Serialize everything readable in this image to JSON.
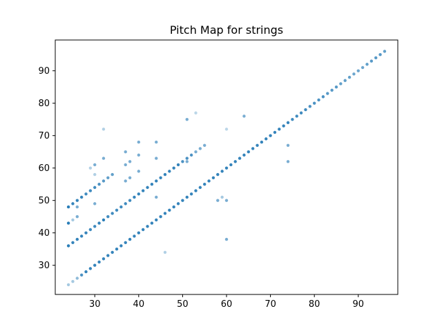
{
  "chart_data": {
    "type": "scatter",
    "title": "Pitch Map for strings",
    "xlabel": "",
    "ylabel": "",
    "xlim": [
      21,
      99
    ],
    "ylim": [
      21,
      99.5
    ],
    "xticks": [
      30,
      40,
      50,
      60,
      70,
      80,
      90
    ],
    "yticks": [
      30,
      40,
      50,
      60,
      70,
      80,
      90
    ],
    "grid": false,
    "legend": "none",
    "color": "#1f77b4",
    "series": [
      {
        "points": [
          {
            "x": 24,
            "y": 36,
            "a": 0.95
          },
          {
            "x": 25,
            "y": 37,
            "a": 0.9
          },
          {
            "x": 26,
            "y": 38,
            "a": 0.9
          },
          {
            "x": 27,
            "y": 39,
            "a": 0.9
          },
          {
            "x": 28,
            "y": 40,
            "a": 0.9
          },
          {
            "x": 29,
            "y": 41,
            "a": 0.85
          },
          {
            "x": 30,
            "y": 42,
            "a": 0.85
          },
          {
            "x": 31,
            "y": 43,
            "a": 0.9
          },
          {
            "x": 32,
            "y": 44,
            "a": 0.95
          },
          {
            "x": 33,
            "y": 45,
            "a": 0.85
          },
          {
            "x": 34,
            "y": 46,
            "a": 0.85
          },
          {
            "x": 35,
            "y": 47,
            "a": 0.85
          },
          {
            "x": 36,
            "y": 48,
            "a": 0.85
          },
          {
            "x": 37,
            "y": 49,
            "a": 0.85
          },
          {
            "x": 38,
            "y": 50,
            "a": 0.85
          },
          {
            "x": 39,
            "y": 51,
            "a": 0.9
          },
          {
            "x": 40,
            "y": 52,
            "a": 0.9
          },
          {
            "x": 41,
            "y": 53,
            "a": 0.9
          },
          {
            "x": 42,
            "y": 54,
            "a": 0.9
          },
          {
            "x": 43,
            "y": 55,
            "a": 0.9
          },
          {
            "x": 44,
            "y": 56,
            "a": 0.9
          },
          {
            "x": 45,
            "y": 57,
            "a": 0.9
          },
          {
            "x": 46,
            "y": 58,
            "a": 0.9
          },
          {
            "x": 47,
            "y": 59,
            "a": 0.9
          },
          {
            "x": 48,
            "y": 60,
            "a": 0.9
          },
          {
            "x": 49,
            "y": 61,
            "a": 0.9
          },
          {
            "x": 50,
            "y": 62,
            "a": 0.8
          },
          {
            "x": 51,
            "y": 63,
            "a": 0.8
          },
          {
            "x": 52,
            "y": 64,
            "a": 0.8
          },
          {
            "x": 53,
            "y": 65,
            "a": 0.6
          },
          {
            "x": 54,
            "y": 66,
            "a": 0.6
          },
          {
            "x": 55,
            "y": 67,
            "a": 0.6
          },
          {
            "x": 24,
            "y": 24,
            "a": 0.4
          },
          {
            "x": 25,
            "y": 25,
            "a": 0.4
          },
          {
            "x": 26,
            "y": 26,
            "a": 0.5
          },
          {
            "x": 27,
            "y": 27,
            "a": 0.8
          },
          {
            "x": 28,
            "y": 28,
            "a": 0.9
          },
          {
            "x": 29,
            "y": 29,
            "a": 0.9
          },
          {
            "x": 30,
            "y": 30,
            "a": 0.9
          },
          {
            "x": 31,
            "y": 31,
            "a": 0.9
          },
          {
            "x": 32,
            "y": 32,
            "a": 0.9
          },
          {
            "x": 33,
            "y": 33,
            "a": 0.9
          },
          {
            "x": 34,
            "y": 34,
            "a": 0.9
          },
          {
            "x": 35,
            "y": 35,
            "a": 0.9
          },
          {
            "x": 36,
            "y": 36,
            "a": 0.9
          },
          {
            "x": 37,
            "y": 37,
            "a": 0.9
          },
          {
            "x": 38,
            "y": 38,
            "a": 0.9
          },
          {
            "x": 39,
            "y": 39,
            "a": 0.9
          },
          {
            "x": 40,
            "y": 40,
            "a": 0.9
          },
          {
            "x": 41,
            "y": 41,
            "a": 0.9
          },
          {
            "x": 42,
            "y": 42,
            "a": 0.9
          },
          {
            "x": 43,
            "y": 43,
            "a": 0.9
          },
          {
            "x": 44,
            "y": 44,
            "a": 0.9
          },
          {
            "x": 45,
            "y": 45,
            "a": 0.9
          },
          {
            "x": 46,
            "y": 46,
            "a": 0.9
          },
          {
            "x": 47,
            "y": 47,
            "a": 0.9
          },
          {
            "x": 48,
            "y": 48,
            "a": 0.9
          },
          {
            "x": 49,
            "y": 49,
            "a": 0.9
          },
          {
            "x": 50,
            "y": 50,
            "a": 0.9
          },
          {
            "x": 51,
            "y": 51,
            "a": 0.9
          },
          {
            "x": 52,
            "y": 52,
            "a": 0.9
          },
          {
            "x": 53,
            "y": 53,
            "a": 0.9
          },
          {
            "x": 54,
            "y": 54,
            "a": 0.9
          },
          {
            "x": 55,
            "y": 55,
            "a": 0.9
          },
          {
            "x": 56,
            "y": 56,
            "a": 0.9
          },
          {
            "x": 57,
            "y": 57,
            "a": 0.9
          },
          {
            "x": 58,
            "y": 58,
            "a": 0.9
          },
          {
            "x": 59,
            "y": 59,
            "a": 0.9
          },
          {
            "x": 60,
            "y": 60,
            "a": 0.9
          },
          {
            "x": 61,
            "y": 61,
            "a": 0.9
          },
          {
            "x": 62,
            "y": 62,
            "a": 0.9
          },
          {
            "x": 63,
            "y": 63,
            "a": 0.9
          },
          {
            "x": 64,
            "y": 64,
            "a": 0.9
          },
          {
            "x": 65,
            "y": 65,
            "a": 0.9
          },
          {
            "x": 66,
            "y": 66,
            "a": 0.9
          },
          {
            "x": 67,
            "y": 67,
            "a": 0.9
          },
          {
            "x": 68,
            "y": 68,
            "a": 0.9
          },
          {
            "x": 69,
            "y": 69,
            "a": 0.9
          },
          {
            "x": 70,
            "y": 70,
            "a": 0.9
          },
          {
            "x": 71,
            "y": 71,
            "a": 0.9
          },
          {
            "x": 72,
            "y": 72,
            "a": 0.9
          },
          {
            "x": 73,
            "y": 73,
            "a": 0.9
          },
          {
            "x": 74,
            "y": 74,
            "a": 0.9
          },
          {
            "x": 75,
            "y": 75,
            "a": 0.85
          },
          {
            "x": 76,
            "y": 76,
            "a": 0.85
          },
          {
            "x": 77,
            "y": 77,
            "a": 0.85
          },
          {
            "x": 78,
            "y": 78,
            "a": 0.85
          },
          {
            "x": 79,
            "y": 79,
            "a": 0.8
          },
          {
            "x": 80,
            "y": 80,
            "a": 0.8
          },
          {
            "x": 81,
            "y": 81,
            "a": 0.8
          },
          {
            "x": 82,
            "y": 82,
            "a": 0.8
          },
          {
            "x": 83,
            "y": 83,
            "a": 0.75
          },
          {
            "x": 84,
            "y": 84,
            "a": 0.75
          },
          {
            "x": 85,
            "y": 85,
            "a": 0.75
          },
          {
            "x": 86,
            "y": 86,
            "a": 0.7
          },
          {
            "x": 87,
            "y": 87,
            "a": 0.7
          },
          {
            "x": 88,
            "y": 88,
            "a": 0.7
          },
          {
            "x": 89,
            "y": 89,
            "a": 0.65
          },
          {
            "x": 90,
            "y": 90,
            "a": 0.65
          },
          {
            "x": 91,
            "y": 91,
            "a": 0.65
          },
          {
            "x": 92,
            "y": 92,
            "a": 0.7
          },
          {
            "x": 93,
            "y": 93,
            "a": 0.75
          },
          {
            "x": 94,
            "y": 94,
            "a": 0.75
          },
          {
            "x": 95,
            "y": 95,
            "a": 0.75
          },
          {
            "x": 96,
            "y": 96,
            "a": 0.7
          },
          {
            "x": 24,
            "y": 48,
            "a": 0.95
          },
          {
            "x": 25,
            "y": 49,
            "a": 0.9
          },
          {
            "x": 26,
            "y": 50,
            "a": 0.9
          },
          {
            "x": 27,
            "y": 51,
            "a": 0.9
          },
          {
            "x": 28,
            "y": 52,
            "a": 0.85
          },
          {
            "x": 29,
            "y": 53,
            "a": 0.85
          },
          {
            "x": 30,
            "y": 54,
            "a": 0.85
          },
          {
            "x": 31,
            "y": 55,
            "a": 0.8
          },
          {
            "x": 32,
            "y": 56,
            "a": 0.75
          },
          {
            "x": 33,
            "y": 57,
            "a": 0.7
          },
          {
            "x": 34,
            "y": 58,
            "a": 0.7
          },
          {
            "x": 24,
            "y": 43,
            "a": 0.95
          },
          {
            "x": 25,
            "y": 44,
            "a": 0.4
          },
          {
            "x": 26,
            "y": 45,
            "a": 0.6
          },
          {
            "x": 26,
            "y": 48,
            "a": 0.6
          },
          {
            "x": 29,
            "y": 60,
            "a": 0.35
          },
          {
            "x": 30,
            "y": 61,
            "a": 0.6
          },
          {
            "x": 30,
            "y": 58,
            "a": 0.35
          },
          {
            "x": 30,
            "y": 49,
            "a": 0.6
          },
          {
            "x": 32,
            "y": 72,
            "a": 0.35
          },
          {
            "x": 32,
            "y": 63,
            "a": 0.6
          },
          {
            "x": 37,
            "y": 65,
            "a": 0.6
          },
          {
            "x": 37,
            "y": 61,
            "a": 0.6
          },
          {
            "x": 37,
            "y": 56,
            "a": 0.6
          },
          {
            "x": 38,
            "y": 62,
            "a": 0.6
          },
          {
            "x": 38,
            "y": 57,
            "a": 0.6
          },
          {
            "x": 40,
            "y": 68,
            "a": 0.6
          },
          {
            "x": 40,
            "y": 64,
            "a": 0.6
          },
          {
            "x": 40,
            "y": 59,
            "a": 0.6
          },
          {
            "x": 44,
            "y": 68,
            "a": 0.6
          },
          {
            "x": 44,
            "y": 63,
            "a": 0.6
          },
          {
            "x": 44,
            "y": 51,
            "a": 0.6
          },
          {
            "x": 46,
            "y": 34,
            "a": 0.35
          },
          {
            "x": 51,
            "y": 75,
            "a": 0.6
          },
          {
            "x": 51,
            "y": 62,
            "a": 0.6
          },
          {
            "x": 53,
            "y": 77,
            "a": 0.3
          },
          {
            "x": 58,
            "y": 50,
            "a": 0.6
          },
          {
            "x": 59,
            "y": 51,
            "a": 0.4
          },
          {
            "x": 60,
            "y": 72,
            "a": 0.3
          },
          {
            "x": 60,
            "y": 50,
            "a": 0.6
          },
          {
            "x": 60,
            "y": 38,
            "a": 0.6
          },
          {
            "x": 64,
            "y": 76,
            "a": 0.6
          },
          {
            "x": 74,
            "y": 67,
            "a": 0.6
          },
          {
            "x": 74,
            "y": 62,
            "a": 0.6
          }
        ]
      }
    ]
  }
}
